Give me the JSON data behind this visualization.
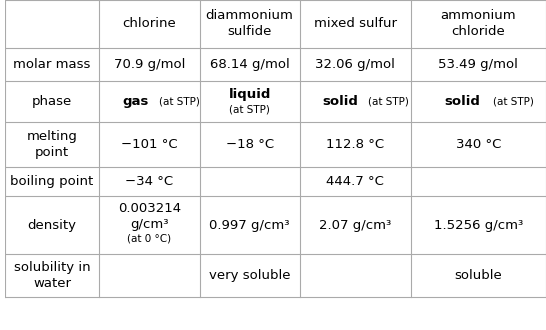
{
  "columns": [
    "",
    "chlorine",
    "diammonium\nsulfide",
    "mixed sulfur",
    "ammonium\nchloride"
  ],
  "rows": [
    {
      "label": "molar mass",
      "cells": [
        {
          "text": "70.9 g/mol",
          "parts": null
        },
        {
          "text": "68.14 g/mol",
          "parts": null
        },
        {
          "text": "32.06 g/mol",
          "parts": null
        },
        {
          "text": "53.49 g/mol",
          "parts": null
        }
      ]
    },
    {
      "label": "phase",
      "cells": [
        {
          "main": "gas",
          "sub": "at STP",
          "bold_main": true
        },
        {
          "main": "liquid\n",
          "sub": "(at STP)",
          "bold_main": true
        },
        {
          "main": "solid",
          "sub": "at STP",
          "bold_main": true
        },
        {
          "main": "solid",
          "sub": "at STP",
          "bold_main": true
        }
      ]
    },
    {
      "label": "melting\npoint",
      "cells": [
        {
          "text": "−101 °C",
          "parts": null
        },
        {
          "text": "−18 °C",
          "parts": null
        },
        {
          "text": "112.8 °C",
          "parts": null
        },
        {
          "text": "340 °C",
          "parts": null
        }
      ]
    },
    {
      "label": "boiling point",
      "cells": [
        {
          "text": "−34 °C",
          "parts": null
        },
        {
          "text": "",
          "parts": null
        },
        {
          "text": "444.7 °C",
          "parts": null
        },
        {
          "text": "",
          "parts": null
        }
      ]
    },
    {
      "label": "density",
      "cells": [
        {
          "main": "0.003214\ng/cm³",
          "sub": "(at 0 °C)",
          "bold_main": false
        },
        {
          "text": "0.997 g/cm³",
          "parts": null
        },
        {
          "text": "2.07 g/cm³",
          "parts": null
        },
        {
          "text": "1.5256 g/cm³",
          "parts": null
        }
      ]
    },
    {
      "label": "solubility in\nwater",
      "cells": [
        {
          "text": "",
          "parts": null
        },
        {
          "text": "very soluble",
          "parts": null
        },
        {
          "text": "",
          "parts": null
        },
        {
          "text": "soluble",
          "parts": null
        }
      ]
    }
  ],
  "bg_color": "#ffffff",
  "line_color": "#aaaaaa",
  "text_color": "#000000",
  "header_fontsize": 9.5,
  "cell_fontsize": 9.5,
  "label_fontsize": 9.5,
  "sub_fontsize": 7.5
}
